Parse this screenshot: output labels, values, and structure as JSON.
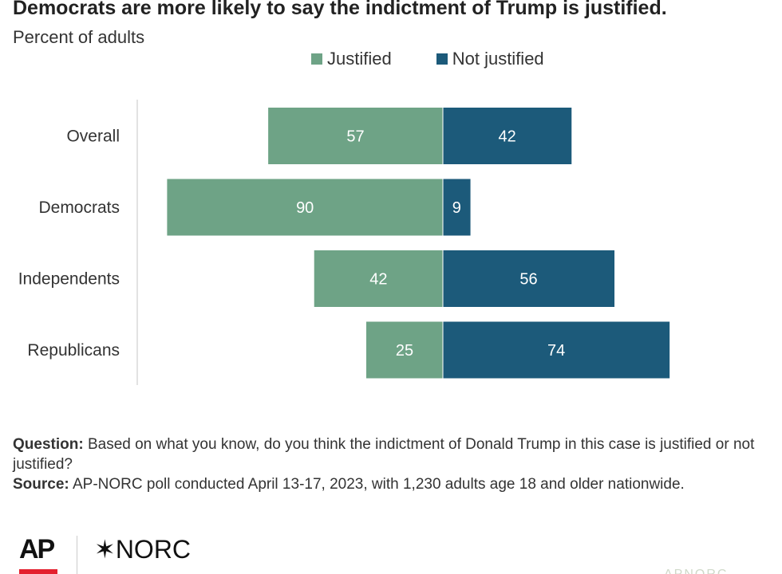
{
  "title": "Democrats are more likely to say the indictment of Trump is justified.",
  "subtitle": "Percent of adults",
  "colors": {
    "justified": "#6ea386",
    "not_justified": "#1c5a7a"
  },
  "chart_data": {
    "type": "bar",
    "orientation": "horizontal-diverging",
    "categories": [
      "Overall",
      "Democrats",
      "Independents",
      "Republicans"
    ],
    "series": [
      {
        "name": "Justified",
        "values": [
          57,
          90,
          42,
          25
        ]
      },
      {
        "name": "Not justified",
        "values": [
          42,
          9,
          56,
          74
        ]
      }
    ],
    "legend_position": "top",
    "grid": false
  },
  "notes": {
    "question_label": "Question:",
    "question_text": "Based on what you know, do you think the indictment of Donald Trump in this case is justified or not justified?",
    "source_label": "Source:",
    "source_text": "AP-NORC poll conducted April 13-17, 2023, with 1,230 adults age 18 and older nationwide."
  },
  "footer": {
    "ap_logo": "AP",
    "norc_logo": "✶NORC",
    "watermark": "APNORC"
  }
}
